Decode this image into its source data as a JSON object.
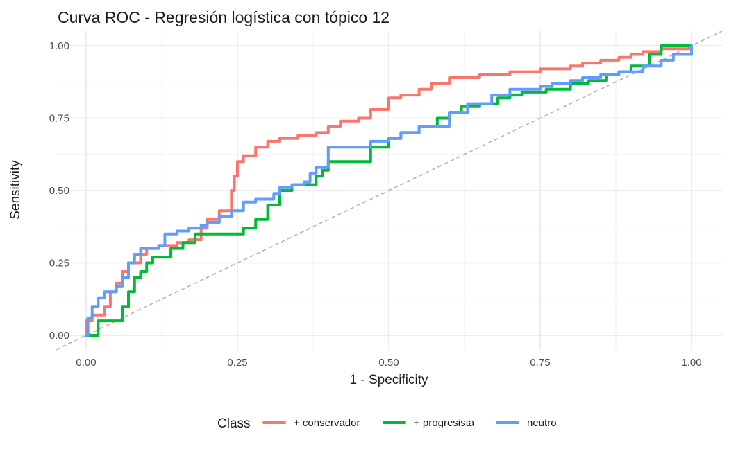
{
  "chart_data": {
    "type": "line",
    "title": "Curva ROC - Regresión logística con tópico 12",
    "xlabel": "1 - Specificity",
    "ylabel": "Sensitivity",
    "xlim": [
      0,
      1
    ],
    "ylim": [
      0,
      1
    ],
    "x_ticks": [
      "0.00",
      "0.25",
      "0.50",
      "0.75",
      "1.00"
    ],
    "y_ticks": [
      "0.00",
      "0.25",
      "0.50",
      "0.75",
      "1.00"
    ],
    "grid": true,
    "legend_position": "bottom",
    "legend_title": "Class",
    "reference_line": {
      "style": "dashed",
      "color": "#b3b3b3",
      "x": [
        0,
        1
      ],
      "y": [
        0,
        1
      ]
    },
    "series": [
      {
        "name": "+ conservador",
        "color": "#F8766D",
        "x": [
          0.0,
          0.0,
          0.01,
          0.03,
          0.04,
          0.05,
          0.06,
          0.07,
          0.09,
          0.1,
          0.12,
          0.15,
          0.17,
          0.19,
          0.2,
          0.22,
          0.24,
          0.245,
          0.25,
          0.26,
          0.28,
          0.3,
          0.32,
          0.35,
          0.38,
          0.4,
          0.42,
          0.45,
          0.47,
          0.5,
          0.52,
          0.55,
          0.57,
          0.6,
          0.65,
          0.7,
          0.75,
          0.8,
          0.82,
          0.85,
          0.88,
          0.9,
          0.92,
          0.95,
          1.0
        ],
        "y": [
          0.0,
          0.05,
          0.07,
          0.1,
          0.15,
          0.18,
          0.22,
          0.25,
          0.28,
          0.3,
          0.31,
          0.32,
          0.33,
          0.37,
          0.4,
          0.43,
          0.5,
          0.55,
          0.6,
          0.62,
          0.65,
          0.67,
          0.68,
          0.69,
          0.7,
          0.72,
          0.74,
          0.75,
          0.78,
          0.82,
          0.83,
          0.85,
          0.87,
          0.89,
          0.9,
          0.91,
          0.92,
          0.93,
          0.94,
          0.95,
          0.96,
          0.97,
          0.98,
          0.99,
          1.0
        ]
      },
      {
        "name": "+ progresista",
        "color": "#00BA38",
        "x": [
          0.0,
          0.02,
          0.02,
          0.05,
          0.06,
          0.07,
          0.08,
          0.09,
          0.1,
          0.11,
          0.13,
          0.14,
          0.16,
          0.18,
          0.2,
          0.25,
          0.26,
          0.28,
          0.3,
          0.32,
          0.34,
          0.36,
          0.38,
          0.39,
          0.4,
          0.46,
          0.47,
          0.5,
          0.52,
          0.55,
          0.58,
          0.6,
          0.62,
          0.65,
          0.68,
          0.7,
          0.72,
          0.76,
          0.78,
          0.8,
          0.83,
          0.86,
          0.88,
          0.9,
          0.93,
          0.95,
          1.0
        ],
        "y": [
          0.0,
          0.0,
          0.05,
          0.05,
          0.1,
          0.15,
          0.2,
          0.22,
          0.25,
          0.27,
          0.27,
          0.3,
          0.32,
          0.35,
          0.35,
          0.35,
          0.37,
          0.4,
          0.45,
          0.5,
          0.52,
          0.52,
          0.55,
          0.57,
          0.6,
          0.6,
          0.65,
          0.68,
          0.7,
          0.72,
          0.75,
          0.77,
          0.79,
          0.8,
          0.82,
          0.83,
          0.84,
          0.85,
          0.85,
          0.87,
          0.88,
          0.9,
          0.91,
          0.93,
          0.97,
          1.0,
          1.0
        ]
      },
      {
        "name": "neutro",
        "color": "#619CFF",
        "x": [
          0.0,
          0.003,
          0.01,
          0.02,
          0.03,
          0.05,
          0.06,
          0.07,
          0.08,
          0.09,
          0.1,
          0.12,
          0.13,
          0.15,
          0.17,
          0.19,
          0.2,
          0.22,
          0.24,
          0.26,
          0.28,
          0.31,
          0.32,
          0.34,
          0.36,
          0.37,
          0.38,
          0.4,
          0.44,
          0.47,
          0.5,
          0.52,
          0.55,
          0.6,
          0.63,
          0.67,
          0.7,
          0.75,
          0.77,
          0.8,
          0.82,
          0.85,
          0.88,
          0.92,
          0.95,
          0.97,
          1.0
        ],
        "y": [
          0.0,
          0.06,
          0.1,
          0.13,
          0.15,
          0.17,
          0.2,
          0.25,
          0.28,
          0.3,
          0.3,
          0.31,
          0.35,
          0.36,
          0.37,
          0.38,
          0.39,
          0.41,
          0.43,
          0.46,
          0.47,
          0.49,
          0.51,
          0.52,
          0.53,
          0.56,
          0.58,
          0.65,
          0.65,
          0.67,
          0.68,
          0.7,
          0.72,
          0.77,
          0.8,
          0.83,
          0.85,
          0.86,
          0.87,
          0.88,
          0.89,
          0.9,
          0.91,
          0.93,
          0.95,
          0.97,
          1.0
        ]
      }
    ]
  }
}
